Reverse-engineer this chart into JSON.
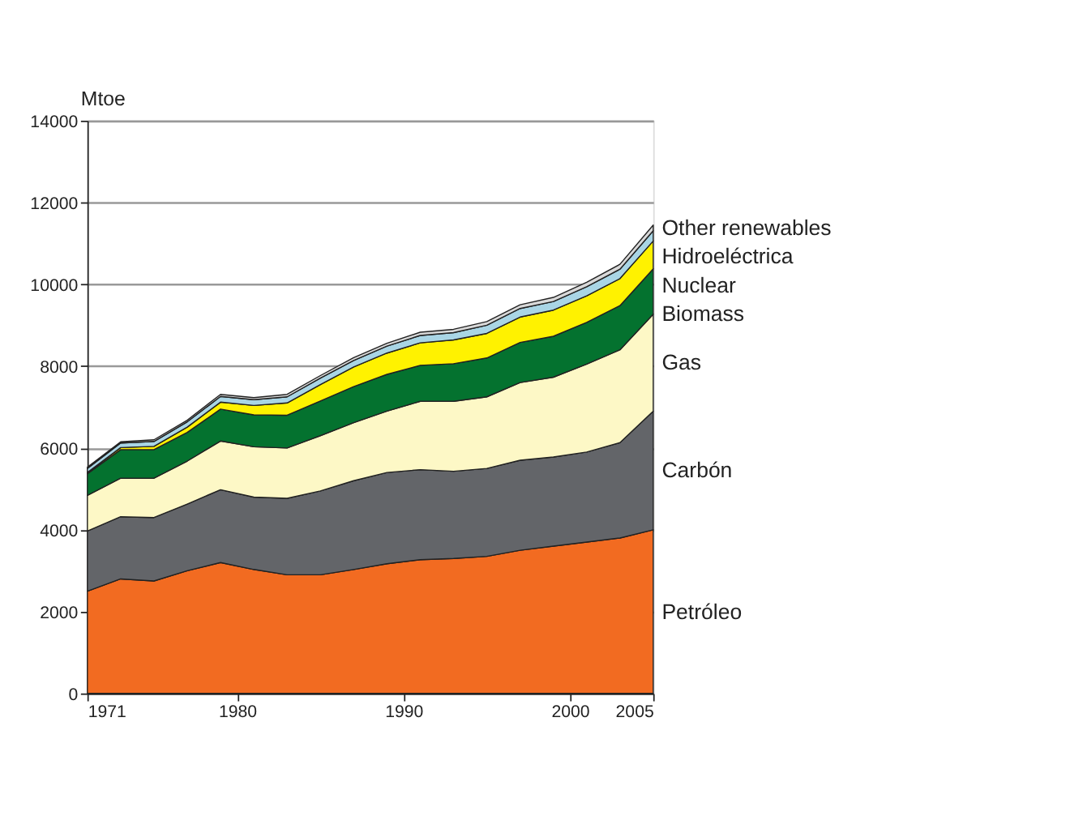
{
  "chart_data": {
    "type": "area",
    "stacked": true,
    "ylabel": "Mtoe",
    "x": [
      1971,
      1973,
      1975,
      1977,
      1979,
      1981,
      1983,
      1985,
      1987,
      1989,
      1991,
      1993,
      1995,
      1997,
      1999,
      2001,
      2003,
      2005
    ],
    "series": [
      {
        "name": "Petróleo",
        "color": "#f26b21",
        "values": [
          2500,
          2800,
          2750,
          3000,
          3200,
          3030,
          2900,
          2900,
          3030,
          3170,
          3270,
          3300,
          3350,
          3500,
          3600,
          3700,
          3800,
          4000
        ]
      },
      {
        "name": "Carbón",
        "color": "#636569",
        "values": [
          1470,
          1520,
          1550,
          1630,
          1780,
          1770,
          1870,
          2050,
          2170,
          2230,
          2200,
          2130,
          2150,
          2200,
          2180,
          2200,
          2330,
          2900
        ]
      },
      {
        "name": "Gas",
        "color": "#fdf8c6",
        "values": [
          870,
          940,
          960,
          1050,
          1190,
          1230,
          1230,
          1350,
          1420,
          1500,
          1670,
          1710,
          1750,
          1900,
          1950,
          2150,
          2270,
          2370
        ]
      },
      {
        "name": "Biomass",
        "color": "#04722f",
        "values": [
          530,
          700,
          700,
          700,
          780,
          780,
          800,
          850,
          880,
          900,
          880,
          920,
          950,
          980,
          1000,
          1020,
          1080,
          1110
        ]
      },
      {
        "name": "Nuclear",
        "color": "#fff200",
        "values": [
          30,
          50,
          80,
          130,
          170,
          230,
          300,
          400,
          480,
          520,
          550,
          580,
          600,
          620,
          640,
          650,
          660,
          680
        ]
      },
      {
        "name": "Hidroeléctrica",
        "color": "#a9d5e5",
        "values": [
          100,
          110,
          120,
          130,
          140,
          140,
          150,
          160,
          160,
          170,
          180,
          180,
          200,
          210,
          210,
          220,
          230,
          250
        ]
      },
      {
        "name": "Other renewables",
        "color": "#d9d9d9",
        "values": [
          30,
          30,
          40,
          40,
          50,
          50,
          60,
          60,
          70,
          70,
          80,
          80,
          90,
          90,
          100,
          110,
          120,
          140
        ]
      }
    ],
    "xlim": [
      1971,
      2005
    ],
    "xticks": [
      1971,
      1980,
      1990,
      2000,
      2005
    ],
    "ylim": [
      0,
      14000
    ],
    "yticks": [
      0,
      2000,
      4000,
      6000,
      8000,
      10000,
      12000,
      14000
    ],
    "grid": "y",
    "legend": "right"
  }
}
